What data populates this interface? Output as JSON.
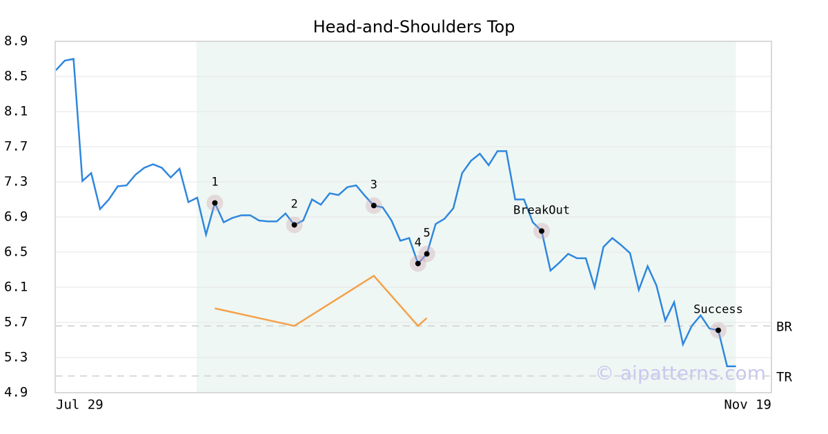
{
  "chart_data": {
    "type": "line",
    "title": "Head-and-Shoulders Top",
    "categories": [
      "Jul 29",
      null,
      null,
      null,
      null,
      null,
      null,
      null,
      null,
      null,
      null,
      null,
      null,
      null,
      null,
      null,
      null,
      null,
      null,
      null,
      null,
      null,
      null,
      null,
      null,
      null,
      null,
      null,
      null,
      null,
      null,
      null,
      null,
      null,
      null,
      null,
      null,
      null,
      null,
      null,
      null,
      null,
      null,
      null,
      null,
      null,
      null,
      null,
      null,
      null,
      null,
      null,
      null,
      null,
      null,
      null,
      null,
      null,
      null,
      null,
      null,
      null,
      null,
      null,
      null,
      null,
      null,
      null,
      null,
      null,
      null,
      null,
      null,
      null,
      null,
      null,
      null,
      "Nov 19"
    ],
    "series": [
      {
        "color": "#2e86de",
        "values": [
          8.57,
          8.68,
          8.7,
          7.31,
          7.4,
          6.99,
          7.1,
          7.25,
          7.26,
          7.38,
          7.46,
          7.5,
          7.46,
          7.35,
          7.45,
          7.07,
          7.12,
          6.7,
          7.06,
          6.84,
          6.89,
          6.92,
          6.92,
          6.86,
          6.85,
          6.85,
          6.94,
          6.81,
          6.86,
          7.1,
          7.04,
          7.17,
          7.15,
          7.24,
          7.26,
          7.14,
          7.03,
          7.01,
          6.86,
          6.63,
          6.66,
          6.37,
          6.48,
          6.82,
          6.88,
          7.0,
          7.4,
          7.54,
          7.62,
          7.49,
          7.65,
          7.65,
          7.1,
          7.1,
          6.84,
          6.74,
          6.29,
          6.38,
          6.48,
          6.43,
          6.43,
          6.1,
          6.56,
          6.66,
          6.58,
          6.49,
          6.07,
          6.34,
          6.12,
          5.72,
          5.93,
          5.45,
          5.66,
          5.78,
          5.63,
          5.61,
          5.2,
          5.2
        ]
      },
      {
        "color": "#f5a04a",
        "values": [
          null,
          null,
          null,
          null,
          null,
          null,
          null,
          null,
          null,
          null,
          null,
          null,
          null,
          null,
          null,
          null,
          null,
          null,
          5.86,
          null,
          null,
          null,
          null,
          null,
          null,
          null,
          null,
          5.66,
          null,
          null,
          null,
          null,
          null,
          null,
          null,
          null,
          6.23,
          null,
          null,
          null,
          null,
          5.66,
          5.75,
          null,
          null,
          null,
          null,
          null,
          null,
          null,
          null,
          null,
          null,
          null,
          null,
          null,
          null,
          null,
          null,
          null,
          null,
          null,
          null,
          null,
          null,
          null,
          null,
          null,
          null,
          null,
          null,
          null,
          null,
          null,
          null,
          null,
          null,
          null
        ]
      }
    ],
    "annotations": [
      {
        "label": "1",
        "at": 18,
        "value": 7.06
      },
      {
        "label": "2",
        "at": 27,
        "value": 6.81
      },
      {
        "label": "3",
        "at": 36,
        "value": 7.03
      },
      {
        "label": "4",
        "at": 41,
        "value": 6.37
      },
      {
        "label": "5",
        "at": 42,
        "value": 6.48
      },
      {
        "label": "BreakOut",
        "at": 55,
        "value": 6.74
      },
      {
        "label": "Success",
        "at": 75,
        "value": 5.61
      }
    ],
    "shaded_range": [
      16,
      77
    ],
    "hlines": [
      {
        "label": "BR",
        "value": 5.66
      },
      {
        "label": "TR",
        "value": 5.09
      }
    ],
    "watermark": "© aipatterns.com",
    "ylim": [
      4.9,
      8.9
    ],
    "yticks": [
      4.9,
      5.3,
      5.7,
      6.1,
      6.5,
      6.9,
      7.3,
      7.7,
      8.1,
      8.5,
      8.9
    ],
    "grid": true
  }
}
